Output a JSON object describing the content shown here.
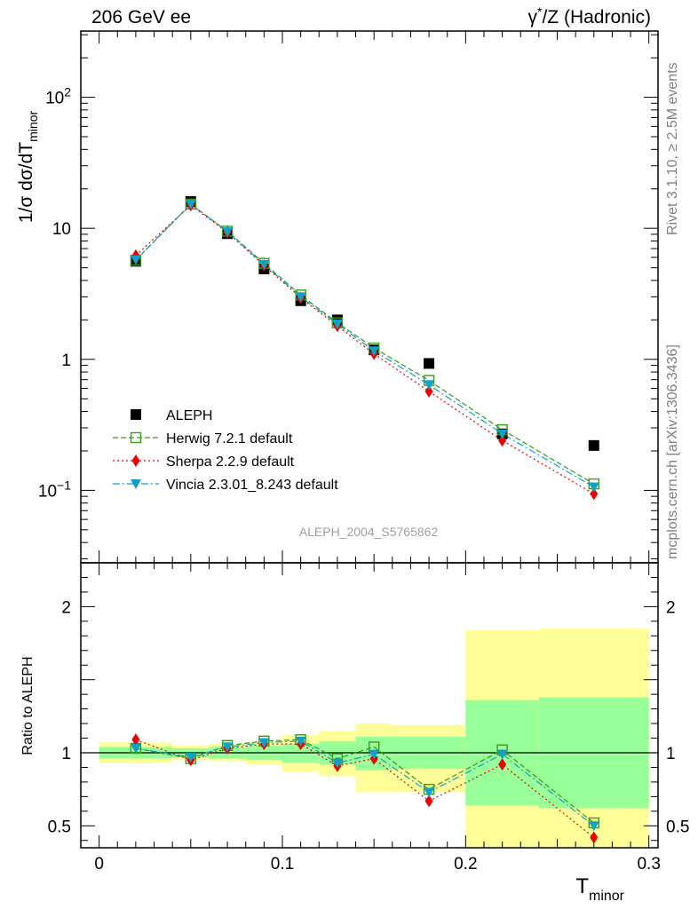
{
  "header": {
    "left": "206 GeV ee",
    "right_prefix": "γ",
    "right_sup": "*",
    "right_suffix": "/Z (Hadronic)"
  },
  "side_labels": {
    "rivet": "Rivet 3.1.10, ≥ 2.5M events",
    "mcplots": "mcplots.cern.ch [arXiv:1306.3436]"
  },
  "watermark": "ALEPH_2004_S5765862",
  "colors": {
    "aleph": "#000000",
    "herwig": "#3a9a1a",
    "sherpa": "#ee0000",
    "vincia": "#11a0c8",
    "band_inner": "#99ff99",
    "band_outer": "#ffff99",
    "side_text": "#808080"
  },
  "chart_data": [
    {
      "type": "scatter",
      "yscale": "log",
      "ylabel": "1/σ dσ/dT_minor",
      "ylabel_parts": {
        "a": "1/σ  dσ/dT",
        "sub": "minor"
      },
      "xlim": [
        -0.01,
        0.305
      ],
      "ylim": [
        0.028,
        320
      ],
      "y_ticks": [
        {
          "v": 0.1,
          "base": "10",
          "exp": "−1"
        },
        {
          "v": 1,
          "label": "1"
        },
        {
          "v": 10,
          "label": "10"
        },
        {
          "v": 100,
          "base": "10",
          "exp": "2"
        }
      ],
      "legend_position": "lower-left",
      "x": [
        0.02,
        0.05,
        0.07,
        0.09,
        0.11,
        0.13,
        0.15,
        0.18,
        0.22,
        0.27
      ],
      "series": [
        {
          "name": "ALEPH",
          "key": "aleph",
          "marker": "square-filled",
          "values": [
            5.6,
            16.0,
            9.1,
            4.9,
            2.8,
            2.0,
            1.18,
            0.93,
            0.27,
            0.22
          ]
        },
        {
          "name": "Herwig 7.2.1 default",
          "key": "herwig",
          "marker": "square-open",
          "line": "dashed",
          "values": [
            5.7,
            15.3,
            9.5,
            5.4,
            3.1,
            1.9,
            1.22,
            0.69,
            0.29,
            0.112
          ]
        },
        {
          "name": "Sherpa 2.2.9 default",
          "key": "sherpa",
          "marker": "diamond",
          "line": "dotted",
          "values": [
            6.2,
            15.0,
            9.3,
            5.2,
            2.95,
            1.8,
            1.1,
            0.57,
            0.24,
            0.094
          ]
        },
        {
          "name": "Vincia 2.3.01_8.243 default",
          "key": "vincia",
          "marker": "triangle-down",
          "line": "dashdot",
          "values": [
            5.75,
            15.3,
            9.4,
            5.3,
            3.0,
            1.86,
            1.16,
            0.64,
            0.27,
            0.106
          ]
        }
      ]
    },
    {
      "type": "scatter",
      "yscale": "linear",
      "ylabel": "Ratio to ALEPH",
      "xlabel": "T_minor",
      "xlabel_parts": {
        "a": "T",
        "sub": "minor"
      },
      "xlim": [
        -0.01,
        0.305
      ],
      "ylim": [
        0.35,
        2.3
      ],
      "x_ticks": [
        {
          "v": 0,
          "label": "0"
        },
        {
          "v": 0.1,
          "label": "0.1"
        },
        {
          "v": 0.2,
          "label": "0.2"
        },
        {
          "v": 0.3,
          "label": "0.3"
        }
      ],
      "y_ticks": [
        {
          "v": 0.5,
          "label": "0.5"
        },
        {
          "v": 1,
          "label": "1"
        },
        {
          "v": 2,
          "label": "2"
        }
      ],
      "bins": [
        {
          "lo": 0.0,
          "hi": 0.04,
          "in": [
            0.96,
            1.04
          ],
          "out": [
            0.93,
            1.07
          ]
        },
        {
          "lo": 0.04,
          "hi": 0.06,
          "in": [
            0.97,
            1.03
          ],
          "out": [
            0.95,
            1.05
          ]
        },
        {
          "lo": 0.06,
          "hi": 0.08,
          "in": [
            0.96,
            1.04
          ],
          "out": [
            0.94,
            1.06
          ]
        },
        {
          "lo": 0.08,
          "hi": 0.1,
          "in": [
            0.95,
            1.05
          ],
          "out": [
            0.92,
            1.08
          ]
        },
        {
          "lo": 0.1,
          "hi": 0.12,
          "in": [
            0.93,
            1.06
          ],
          "out": [
            0.87,
            1.12
          ]
        },
        {
          "lo": 0.12,
          "hi": 0.14,
          "in": [
            0.92,
            1.08
          ],
          "out": [
            0.84,
            1.15
          ]
        },
        {
          "lo": 0.14,
          "hi": 0.16,
          "in": [
            0.88,
            1.11
          ],
          "out": [
            0.73,
            1.2
          ]
        },
        {
          "lo": 0.16,
          "hi": 0.2,
          "in": [
            0.89,
            1.11
          ],
          "out": [
            0.73,
            1.19
          ]
        },
        {
          "lo": 0.2,
          "hi": 0.24,
          "in": [
            0.64,
            1.36
          ],
          "out": [
            0.35,
            1.84
          ]
        },
        {
          "lo": 0.24,
          "hi": 0.3,
          "in": [
            0.62,
            1.38
          ],
          "out": [
            0.35,
            1.85
          ]
        }
      ],
      "x": [
        0.02,
        0.05,
        0.07,
        0.09,
        0.11,
        0.13,
        0.15,
        0.18,
        0.22,
        0.27
      ],
      "series": [
        {
          "name": "Herwig 7.2.1 default",
          "key": "herwig",
          "marker": "square-open",
          "line": "dashed",
          "values": [
            1.03,
            0.96,
            1.05,
            1.08,
            1.09,
            0.96,
            1.04,
            0.75,
            1.02,
            0.52
          ]
        },
        {
          "name": "Sherpa 2.2.9 default",
          "key": "sherpa",
          "marker": "diamond",
          "line": "dotted",
          "values": [
            1.09,
            0.95,
            1.03,
            1.06,
            1.06,
            0.91,
            0.96,
            0.67,
            0.92,
            0.42
          ]
        },
        {
          "name": "Vincia 2.3.01_8.243 default",
          "key": "vincia",
          "marker": "triangle-down",
          "line": "dashdot",
          "values": [
            1.03,
            0.97,
            1.04,
            1.07,
            1.08,
            0.93,
            0.99,
            0.73,
            0.99,
            0.5
          ]
        }
      ]
    }
  ]
}
